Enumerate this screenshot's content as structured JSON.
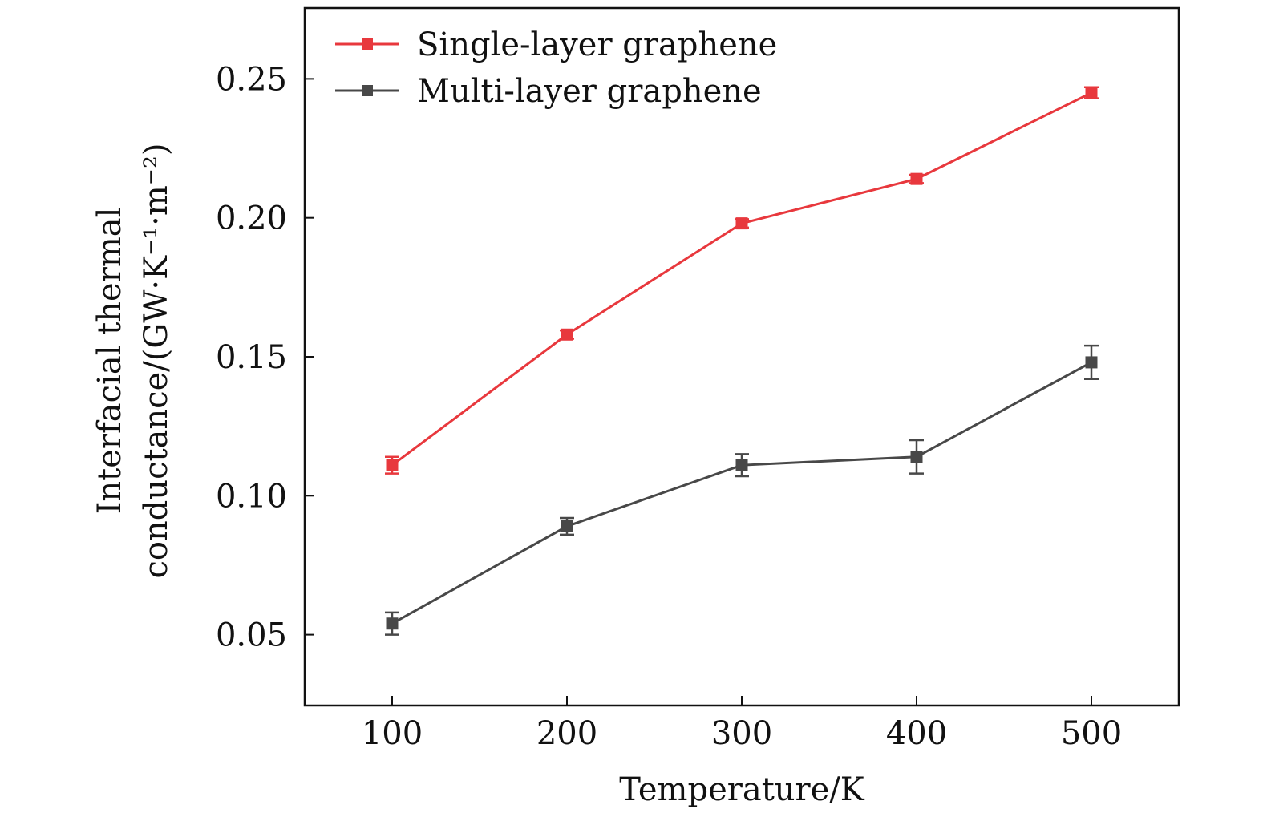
{
  "chart_data": {
    "type": "line",
    "title": "",
    "xlabel": "Temperature/K",
    "ylabel": "Interfacial thermal conductance/(GW·K⁻¹·m⁻²)",
    "ylabel_lines": [
      "Interfacial thermal",
      "conductance/(GW·K⁻¹·m⁻²)"
    ],
    "x": [
      100,
      200,
      300,
      400,
      500
    ],
    "xlim": [
      50,
      550
    ],
    "ylim": [
      0.0245,
      0.2755
    ],
    "xticks": [
      100,
      200,
      300,
      400,
      500
    ],
    "xtick_labels": [
      "100",
      "200",
      "300",
      "400",
      "500"
    ],
    "yticks": [
      0.05,
      0.1,
      0.15,
      0.2,
      0.25
    ],
    "ytick_labels": [
      "0.05",
      "0.10",
      "0.15",
      "0.20",
      "0.25"
    ],
    "grid": false,
    "legend_position": "top-left",
    "series": [
      {
        "name": "Single-layer graphene",
        "color": "#e8383d",
        "values": [
          0.111,
          0.158,
          0.198,
          0.214,
          0.245
        ],
        "errors": [
          0.003,
          0.0015,
          0.0015,
          0.0015,
          0.002
        ]
      },
      {
        "name": "Multi-layer graphene",
        "color": "#484848",
        "values": [
          0.054,
          0.089,
          0.111,
          0.114,
          0.148
        ],
        "errors": [
          0.004,
          0.003,
          0.004,
          0.006,
          0.006
        ]
      }
    ]
  }
}
